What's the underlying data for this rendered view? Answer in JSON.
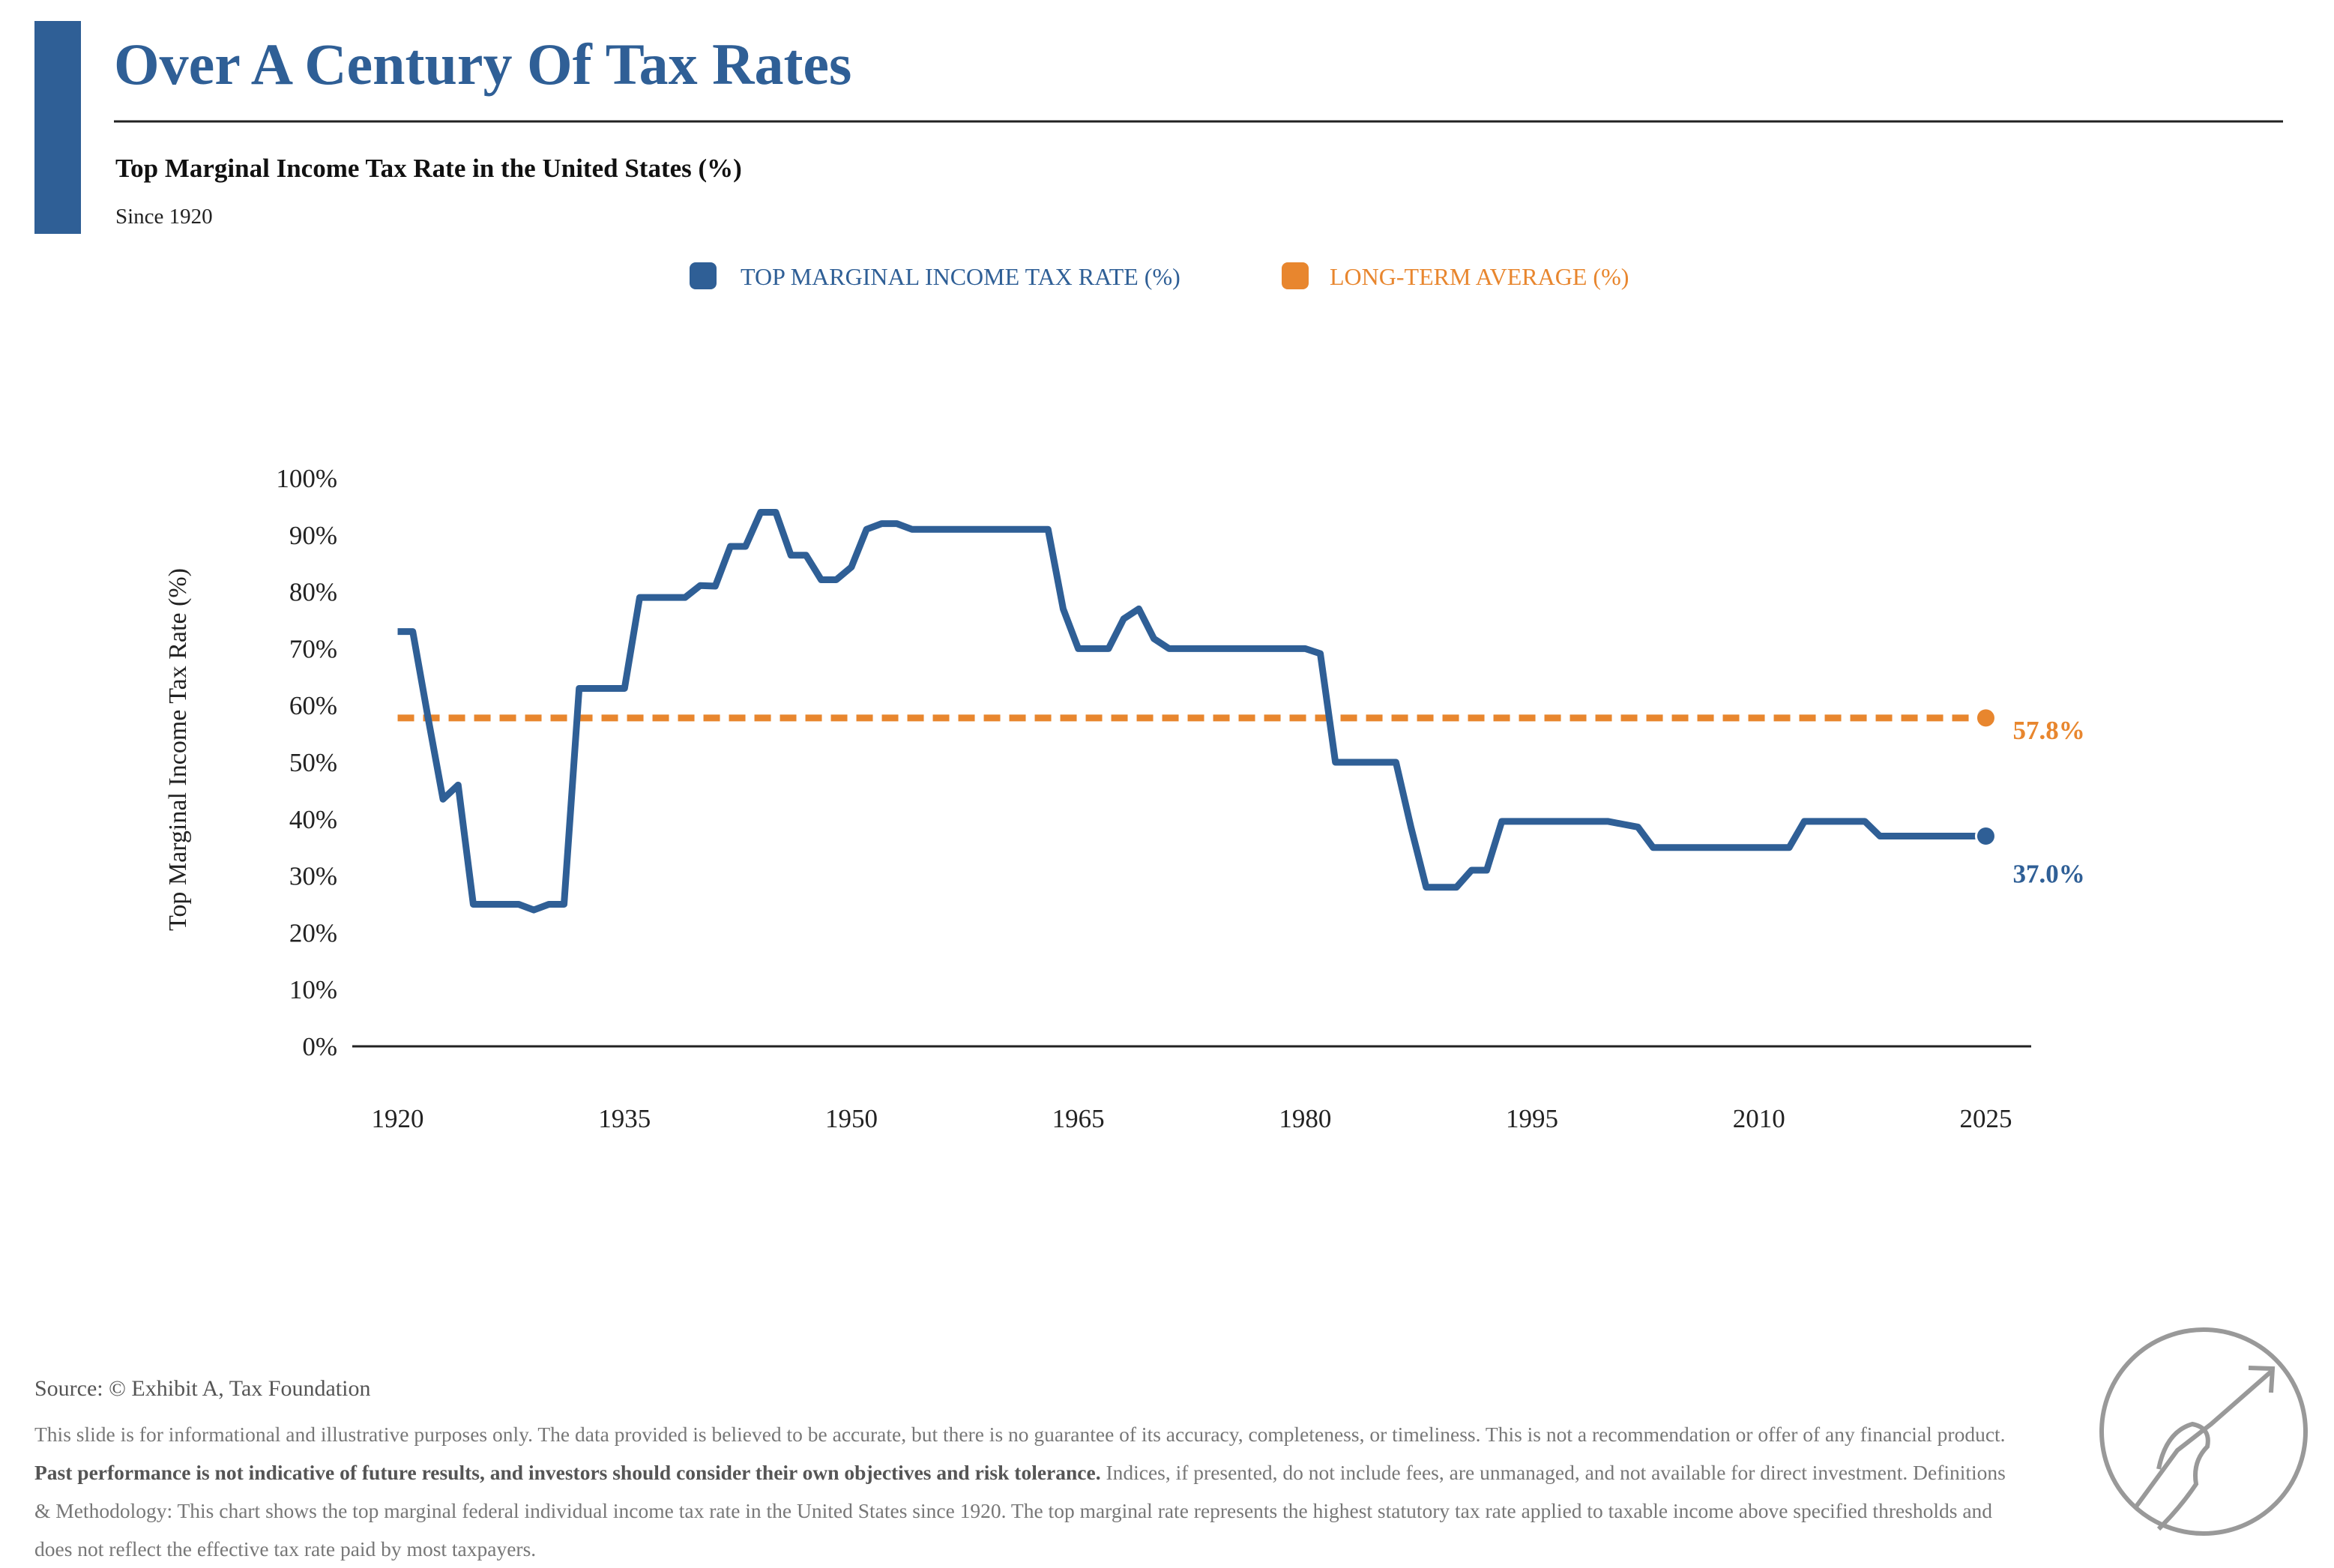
{
  "chart_data": {
    "type": "line",
    "title": "Over A Century Of Tax Rates",
    "subtitle": "Top Marginal Income Tax Rate in the United States (%)",
    "note": "Since 1920",
    "y_label": "Top Marginal Income Tax Rate (%)",
    "x": [
      1920,
      1921,
      1922,
      1923,
      1924,
      1925,
      1926,
      1927,
      1928,
      1929,
      1930,
      1931,
      1932,
      1933,
      1934,
      1935,
      1936,
      1937,
      1938,
      1939,
      1940,
      1941,
      1942,
      1943,
      1944,
      1945,
      1946,
      1947,
      1948,
      1949,
      1950,
      1951,
      1952,
      1953,
      1954,
      1955,
      1956,
      1957,
      1958,
      1959,
      1960,
      1961,
      1962,
      1963,
      1964,
      1965,
      1966,
      1967,
      1968,
      1969,
      1970,
      1971,
      1972,
      1973,
      1974,
      1975,
      1976,
      1977,
      1978,
      1979,
      1980,
      1981,
      1982,
      1983,
      1984,
      1985,
      1986,
      1987,
      1988,
      1989,
      1990,
      1991,
      1992,
      1993,
      1994,
      1995,
      1996,
      1997,
      1998,
      1999,
      2000,
      2001,
      2002,
      2003,
      2004,
      2005,
      2006,
      2007,
      2008,
      2009,
      2010,
      2011,
      2012,
      2013,
      2014,
      2015,
      2016,
      2017,
      2018,
      2019,
      2020,
      2021,
      2022,
      2023,
      2024,
      2025
    ],
    "series": [
      {
        "name": "TOP MARGINAL INCOME TAX RATE (%)",
        "color": "#2f5f96",
        "values": [
          73,
          73,
          58,
          43.5,
          46,
          25,
          25,
          25,
          25,
          24,
          25,
          25,
          63,
          63,
          63,
          63,
          79,
          79,
          79,
          79,
          81.1,
          81,
          88,
          88,
          94,
          94,
          86.45,
          86.45,
          82.13,
          82.13,
          84.36,
          91,
          92,
          92,
          91,
          91,
          91,
          91,
          91,
          91,
          91,
          91,
          91,
          91,
          77,
          70,
          70,
          70,
          75.25,
          77,
          71.75,
          70,
          70,
          70,
          70,
          70,
          70,
          70,
          70,
          70,
          70,
          69.13,
          50,
          50,
          50,
          50,
          50,
          38.5,
          28,
          28,
          28,
          31,
          31,
          39.6,
          39.6,
          39.6,
          39.6,
          39.6,
          39.6,
          39.6,
          39.6,
          39.1,
          38.6,
          35,
          35,
          35,
          35,
          35,
          35,
          35,
          35,
          35,
          35,
          39.6,
          39.6,
          39.6,
          39.6,
          39.6,
          37,
          37,
          37,
          37,
          37,
          37,
          37,
          37
        ],
        "value_labels": [
          null,
          null,
          null,
          null,
          null,
          null,
          null,
          null,
          null,
          null,
          null,
          null,
          null,
          null,
          null,
          null,
          null,
          null,
          null,
          null,
          null,
          null,
          null,
          null,
          null,
          null,
          null,
          null,
          null,
          null,
          null,
          null,
          null,
          null,
          null,
          null,
          null,
          null,
          null,
          null,
          null,
          null,
          null,
          null,
          null,
          null,
          null,
          null,
          null,
          null,
          null,
          null,
          null,
          null,
          null,
          null,
          null,
          null,
          null,
          null,
          null,
          null,
          null,
          null,
          null,
          null,
          null,
          null,
          null,
          null,
          null,
          null,
          null,
          null,
          null,
          null,
          null,
          null,
          null,
          null,
          null,
          null,
          null,
          null,
          null,
          null,
          null,
          null,
          null,
          null,
          null,
          null,
          null,
          null,
          null,
          null,
          null,
          null,
          null,
          null,
          null,
          null,
          null,
          null,
          null,
          "37.0%"
        ]
      }
    ],
    "average": {
      "name": "LONG-TERM AVERAGE (%)",
      "color": "#e8862e",
      "value": 57.8,
      "value_label": "57.8%"
    },
    "xlim": [
      1917,
      2028
    ],
    "xticks": [
      1920,
      1935,
      1950,
      1965,
      1980,
      1995,
      2010,
      2025
    ],
    "ylim": [
      0,
      100
    ],
    "yticks": [
      {
        "value": 0,
        "label": "0%"
      },
      {
        "value": 10,
        "label": "10%"
      },
      {
        "value": 20,
        "label": "20%"
      },
      {
        "value": 30,
        "label": "30%"
      },
      {
        "value": 40,
        "label": "40%"
      },
      {
        "value": 50,
        "label": "50%"
      },
      {
        "value": 60,
        "label": "60%"
      },
      {
        "value": 70,
        "label": "70%"
      },
      {
        "value": 80,
        "label": "80%"
      },
      {
        "value": 90,
        "label": "90%"
      },
      {
        "value": 100,
        "label": "100%"
      }
    ],
    "grid": false
  },
  "footer": {
    "source": "Source: © Exhibit A, Tax Foundation",
    "disclaimer": [
      "This slide is for informational and illustrative purposes only. The data provided is believed to be accurate, but there is no guarantee of its accuracy, completeness, or timeliness. This is not a recommendation or offer of any financial product. ",
      "Past performance is not indicative of future results, and investors should consider their own objectives and risk tolerance.",
      " Indices, if presented, do not include fees, are unmanaged, and not available for direct investment. Definitions & Methodology: This chart shows the top marginal federal individual income tax rate in the United States since 1920. The top marginal rate represents the highest statutory tax rate applied to taxable income above specified thresholds and does not reflect the effective tax rate paid by most taxpayers."
    ]
  }
}
